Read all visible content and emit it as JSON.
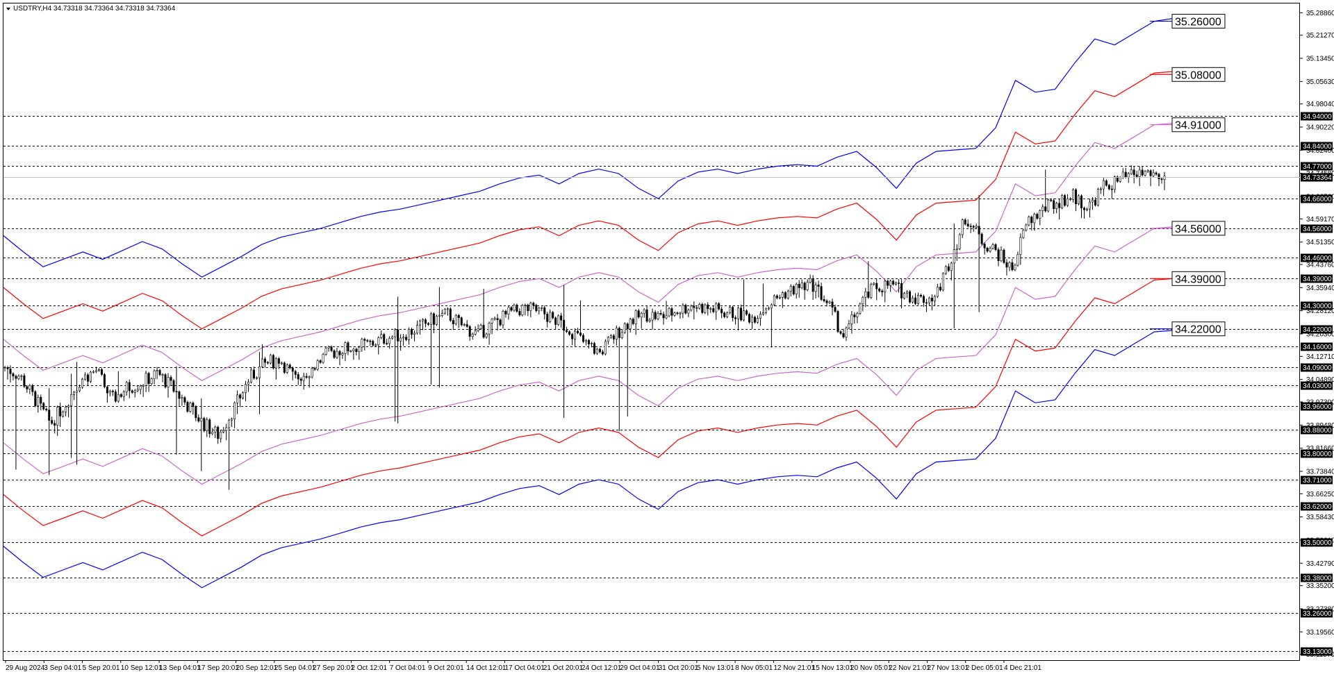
{
  "header": {
    "symbol_line": "USDTRY,H4  34.73318 34.73364 34.73318 34.73364"
  },
  "chart_data": {
    "type": "candlestick",
    "symbol": "USDTRY",
    "timeframe": "H4",
    "ohlc_last": {
      "open": 34.73318,
      "high": 34.73364,
      "low": 34.73318,
      "close": 34.73364
    },
    "current_price": "34.73364",
    "ylim": [
      33.1,
      35.32
    ],
    "y_ticks": [
      "35.28860",
      "35.21270",
      "35.13450",
      "35.05630",
      "34.98040",
      "34.90220",
      "34.82400",
      "34.74580",
      "34.66760",
      "34.59170",
      "34.51350",
      "34.43760",
      "34.35940",
      "34.28120",
      "34.20300",
      "34.12710",
      "34.04890",
      "33.97300",
      "33.89480",
      "33.81660",
      "33.73840",
      "33.66250",
      "33.58430",
      "33.50610",
      "33.42790",
      "33.35200",
      "33.27380",
      "33.19560",
      "33.11970"
    ],
    "x_ticks": [
      "29 Aug 2024",
      "3 Sep 04:01",
      "5 Sep 20:01",
      "10 Sep 12:01",
      "13 Sep 04:01",
      "17 Sep 20:01",
      "20 Sep 12:01",
      "25 Sep 04:01",
      "27 Sep 20:01",
      "2 Oct 12:01",
      "7 Oct 04:01",
      "9 Oct 20:01",
      "14 Oct 12:01",
      "17 Oct 04:01",
      "21 Oct 20:01",
      "24 Oct 12:01",
      "29 Oct 04:01",
      "31 Oct 20:01",
      "5 Nov 13:01",
      "8 Nov 05:01",
      "12 Nov 21:01",
      "15 Nov 13:01",
      "20 Nov 05:01",
      "22 Nov 21:01",
      "27 Nov 13:01",
      "2 Dec 05:01",
      "4 Dec 21:01"
    ],
    "horizontal_levels": [
      "34.94000",
      "34.84000",
      "34.77000",
      "34.66000",
      "34.56000",
      "34.46000",
      "34.39000",
      "34.30000",
      "34.22000",
      "34.16000",
      "34.09000",
      "34.03000",
      "33.96000",
      "33.88000",
      "33.80000",
      "33.71000",
      "33.62000",
      "33.50000",
      "33.38000",
      "33.26000",
      "33.13000"
    ],
    "band_end_labels": [
      {
        "label": "35.26000",
        "color": "#0000ff"
      },
      {
        "label": "35.08000",
        "color": "#ff0000"
      },
      {
        "label": "34.91000",
        "color": "#cc66cc"
      },
      {
        "label": "34.56000",
        "color": "#cc66cc"
      },
      {
        "label": "34.39000",
        "color": "#ff0000"
      },
      {
        "label": "34.22000",
        "color": "#0000ff"
      }
    ],
    "series": [
      {
        "color": "#0000ff",
        "values": [
          34.535,
          34.48,
          34.43,
          34.455,
          34.48,
          34.455,
          34.485,
          34.515,
          34.49,
          34.44,
          34.395,
          34.43,
          34.465,
          34.505,
          34.53,
          34.545,
          34.56,
          34.58,
          34.6,
          34.615,
          34.625,
          34.64,
          34.655,
          34.67,
          34.685,
          34.71,
          34.73,
          34.74,
          34.71,
          34.745,
          34.76,
          34.745,
          34.695,
          34.66,
          34.72,
          34.75,
          34.76,
          34.745,
          34.76,
          34.77,
          34.775,
          34.77,
          34.8,
          34.82,
          34.765,
          34.695,
          34.78,
          34.82,
          34.825,
          34.83,
          34.9,
          35.06,
          35.02,
          35.03,
          35.12,
          35.2,
          35.18,
          35.22,
          35.26,
          35.27
        ]
      },
      {
        "color": "#ff0000",
        "values": [
          34.36,
          34.305,
          34.255,
          34.28,
          34.305,
          34.28,
          34.31,
          34.34,
          34.315,
          34.265,
          34.22,
          34.255,
          34.29,
          34.33,
          34.355,
          34.37,
          34.385,
          34.405,
          34.425,
          34.44,
          34.45,
          34.465,
          34.48,
          34.495,
          34.51,
          34.535,
          34.555,
          34.565,
          34.535,
          34.57,
          34.585,
          34.57,
          34.52,
          34.485,
          34.545,
          34.575,
          34.585,
          34.57,
          34.585,
          34.595,
          34.6,
          34.595,
          34.625,
          34.645,
          34.59,
          34.52,
          34.605,
          34.645,
          34.65,
          34.655,
          34.725,
          34.885,
          34.845,
          34.855,
          34.945,
          35.025,
          35.005,
          35.045,
          35.085,
          35.09
        ]
      },
      {
        "color": "#cc66cc",
        "values": [
          34.185,
          34.13,
          34.08,
          34.105,
          34.13,
          34.105,
          34.135,
          34.165,
          34.14,
          34.09,
          34.045,
          34.08,
          34.115,
          34.155,
          34.18,
          34.195,
          34.21,
          34.23,
          34.25,
          34.265,
          34.275,
          34.29,
          34.305,
          34.32,
          34.335,
          34.36,
          34.38,
          34.39,
          34.36,
          34.395,
          34.41,
          34.395,
          34.345,
          34.31,
          34.37,
          34.4,
          34.41,
          34.395,
          34.41,
          34.42,
          34.425,
          34.42,
          34.45,
          34.47,
          34.415,
          34.345,
          34.43,
          34.47,
          34.475,
          34.48,
          34.55,
          34.71,
          34.67,
          34.68,
          34.77,
          34.85,
          34.83,
          34.87,
          34.91,
          34.915
        ]
      },
      {
        "color": "#cc66cc",
        "values": [
          33.835,
          33.78,
          33.73,
          33.755,
          33.78,
          33.755,
          33.785,
          33.815,
          33.79,
          33.74,
          33.695,
          33.73,
          33.765,
          33.805,
          33.83,
          33.845,
          33.86,
          33.88,
          33.9,
          33.915,
          33.925,
          33.94,
          33.955,
          33.97,
          33.985,
          34.01,
          34.03,
          34.04,
          34.01,
          34.045,
          34.06,
          34.045,
          33.995,
          33.96,
          34.02,
          34.05,
          34.06,
          34.045,
          34.06,
          34.07,
          34.075,
          34.07,
          34.1,
          34.12,
          34.065,
          33.995,
          34.08,
          34.12,
          34.125,
          34.13,
          34.2,
          34.36,
          34.32,
          34.33,
          34.42,
          34.5,
          34.48,
          34.52,
          34.56,
          34.565
        ]
      },
      {
        "color": "#ff0000",
        "values": [
          33.66,
          33.605,
          33.555,
          33.58,
          33.605,
          33.58,
          33.61,
          33.64,
          33.615,
          33.565,
          33.52,
          33.555,
          33.59,
          33.63,
          33.655,
          33.67,
          33.685,
          33.705,
          33.725,
          33.74,
          33.75,
          33.765,
          33.78,
          33.795,
          33.81,
          33.835,
          33.855,
          33.865,
          33.835,
          33.87,
          33.885,
          33.87,
          33.82,
          33.785,
          33.845,
          33.875,
          33.885,
          33.87,
          33.885,
          33.895,
          33.9,
          33.895,
          33.925,
          33.945,
          33.89,
          33.82,
          33.905,
          33.945,
          33.95,
          33.955,
          34.025,
          34.185,
          34.145,
          34.155,
          34.245,
          34.325,
          34.305,
          34.345,
          34.385,
          34.39
        ]
      },
      {
        "color": "#0000ff",
        "values": [
          33.485,
          33.43,
          33.38,
          33.405,
          33.43,
          33.405,
          33.435,
          33.465,
          33.44,
          33.39,
          33.345,
          33.38,
          33.415,
          33.455,
          33.48,
          33.495,
          33.51,
          33.53,
          33.55,
          33.565,
          33.575,
          33.59,
          33.605,
          33.62,
          33.635,
          33.66,
          33.68,
          33.69,
          33.66,
          33.695,
          33.71,
          33.695,
          33.645,
          33.61,
          33.67,
          33.7,
          33.71,
          33.695,
          33.71,
          33.72,
          33.725,
          33.72,
          33.75,
          33.77,
          33.715,
          33.645,
          33.73,
          33.77,
          33.775,
          33.78,
          33.85,
          34.01,
          33.97,
          33.98,
          34.07,
          34.15,
          34.13,
          34.17,
          34.21,
          34.215
        ]
      }
    ],
    "close_path": [
      34.09,
      34.06,
      33.98,
      33.9,
      33.97,
      34.05,
      34.08,
      33.98,
      34.02,
      34.04,
      34.07,
      34.02,
      33.96,
      33.9,
      33.86,
      33.95,
      34.05,
      34.1,
      34.12,
      34.05,
      34.08,
      34.13,
      34.15,
      34.16,
      34.17,
      34.19,
      34.2,
      34.22,
      34.25,
      34.27,
      34.23,
      34.2,
      34.24,
      34.27,
      34.29,
      34.28,
      34.25,
      34.22,
      34.17,
      34.14,
      34.2,
      34.25,
      34.27,
      34.26,
      34.28,
      34.3,
      34.29,
      34.28,
      34.27,
      34.26,
      34.3,
      34.34,
      34.36,
      34.37,
      34.3,
      34.19,
      34.3,
      34.36,
      34.37,
      34.34,
      34.32,
      34.33,
      34.46,
      34.6,
      34.52,
      34.48,
      34.42,
      34.58,
      34.62,
      34.65,
      34.67,
      34.63,
      34.7,
      34.72,
      34.74,
      34.75,
      34.73
    ]
  }
}
